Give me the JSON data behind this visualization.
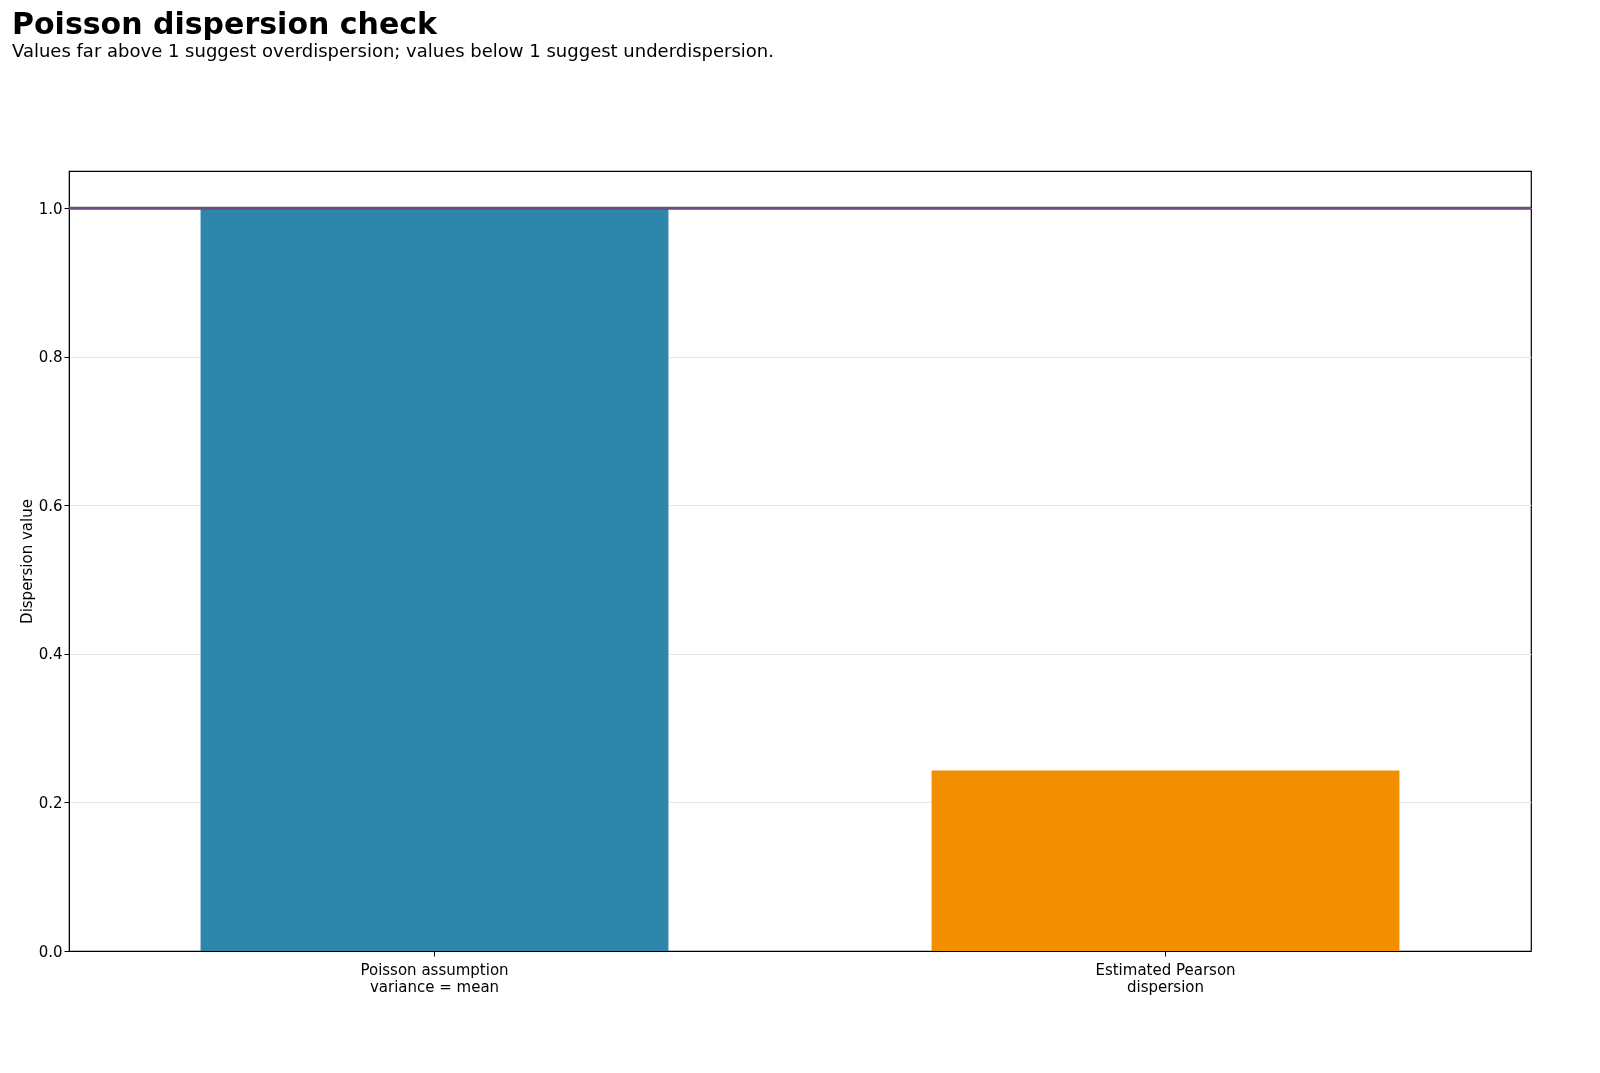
{
  "chart_data": {
    "type": "bar",
    "title": "Poisson dispersion check",
    "subtitle": "Values far above 1 suggest overdispersion; values below 1 suggest underdispersion.",
    "ylabel": "Dispersion value",
    "categories": [
      "Poisson assumption\nvariance = mean",
      "Estimated Pearson\ndispersion"
    ],
    "values": [
      1.0,
      0.243
    ],
    "colors": [
      "#2e86ab",
      "#f18f01"
    ],
    "ylim": [
      0,
      1.05
    ],
    "yticks": [
      {
        "value": 0,
        "label": "0.0"
      },
      {
        "value": 0.2,
        "label": "0.2"
      },
      {
        "value": 0.4,
        "label": "0.4"
      },
      {
        "value": 0.6,
        "label": "0.6"
      },
      {
        "value": 0.8,
        "label": "0.8"
      },
      {
        "value": 1,
        "label": "1.0"
      }
    ],
    "grid": "y",
    "ref_lines": [
      {
        "axis": "y",
        "value": 1,
        "color": "#6a4c7f"
      }
    ]
  }
}
